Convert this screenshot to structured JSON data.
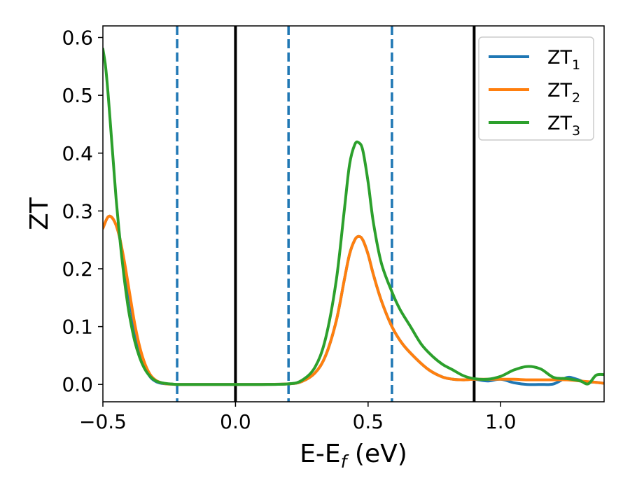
{
  "chart_data": {
    "type": "line",
    "xlabel": "E-E",
    "xlabel_subscript": "f",
    "xlabel_suffix": " (eV)",
    "ylabel": "ZT",
    "xlim": [
      -0.5,
      1.39
    ],
    "ylim": [
      -0.03,
      0.62
    ],
    "xticks": [
      -0.5,
      0.0,
      0.5,
      1.0
    ],
    "xtick_labels": [
      "−0.5",
      "0.0",
      "0.5",
      "1.0"
    ],
    "yticks": [
      0.0,
      0.1,
      0.2,
      0.3,
      0.4,
      0.5,
      0.6
    ],
    "ytick_labels": [
      "0.0",
      "0.1",
      "0.2",
      "0.3",
      "0.4",
      "0.5",
      "0.6"
    ],
    "grid": false,
    "legend_position": "top-right",
    "vertical_lines": [
      {
        "x": -0.22,
        "style": "dashed",
        "color": "#1f77b4"
      },
      {
        "x": 0.0,
        "style": "solid",
        "color": "#000000"
      },
      {
        "x": 0.2,
        "style": "dashed",
        "color": "#1f77b4"
      },
      {
        "x": 0.59,
        "style": "dashed",
        "color": "#1f77b4"
      },
      {
        "x": 0.9,
        "style": "solid",
        "color": "#000000"
      }
    ],
    "series": [
      {
        "name": "ZT",
        "name_subscript": "1",
        "color": "#1f77b4",
        "x": [
          -0.5,
          -0.48,
          -0.46,
          -0.44,
          -0.42,
          -0.4,
          -0.38,
          -0.36,
          -0.34,
          -0.32,
          -0.3,
          -0.28,
          -0.26,
          -0.24,
          -0.22,
          -0.2,
          -0.1,
          0.0,
          0.1,
          0.2,
          0.25,
          0.3,
          0.34,
          0.38,
          0.41,
          0.43,
          0.45,
          0.465,
          0.48,
          0.5,
          0.52,
          0.55,
          0.59,
          0.63,
          0.68,
          0.73,
          0.78,
          0.82,
          0.86,
          0.9,
          0.95,
          1.0,
          1.05,
          1.1,
          1.15,
          1.2,
          1.25,
          1.28,
          1.32,
          1.35,
          1.39
        ],
        "y": [
          0.27,
          0.29,
          0.285,
          0.26,
          0.21,
          0.15,
          0.095,
          0.055,
          0.028,
          0.012,
          0.005,
          0.002,
          0.001,
          0.0005,
          0.0,
          0.0,
          0.0,
          0.0,
          0.0,
          0.001,
          0.005,
          0.02,
          0.05,
          0.11,
          0.18,
          0.225,
          0.25,
          0.256,
          0.25,
          0.225,
          0.19,
          0.145,
          0.1,
          0.07,
          0.045,
          0.025,
          0.013,
          0.009,
          0.008,
          0.009,
          0.006,
          0.009,
          0.003,
          0.0,
          0.0,
          0.001,
          0.012,
          0.01,
          0.004,
          0.004,
          0.002
        ]
      },
      {
        "name": "ZT",
        "name_subscript": "2",
        "color": "#ff7f0e",
        "x": [
          -0.5,
          -0.48,
          -0.46,
          -0.44,
          -0.42,
          -0.4,
          -0.38,
          -0.36,
          -0.34,
          -0.32,
          -0.3,
          -0.28,
          -0.26,
          -0.24,
          -0.22,
          -0.2,
          -0.1,
          0.0,
          0.1,
          0.2,
          0.25,
          0.3,
          0.34,
          0.38,
          0.41,
          0.43,
          0.45,
          0.465,
          0.48,
          0.5,
          0.52,
          0.55,
          0.59,
          0.63,
          0.68,
          0.73,
          0.78,
          0.82,
          0.86,
          0.9,
          0.95,
          1.0,
          1.05,
          1.1,
          1.15,
          1.2,
          1.25,
          1.3,
          1.35,
          1.39
        ],
        "y": [
          0.27,
          0.29,
          0.285,
          0.26,
          0.215,
          0.16,
          0.105,
          0.063,
          0.034,
          0.016,
          0.007,
          0.003,
          0.001,
          0.0005,
          0.0,
          0.0,
          0.0,
          0.0,
          0.0,
          0.001,
          0.005,
          0.02,
          0.05,
          0.11,
          0.18,
          0.225,
          0.25,
          0.256,
          0.25,
          0.225,
          0.19,
          0.145,
          0.1,
          0.07,
          0.045,
          0.025,
          0.013,
          0.009,
          0.008,
          0.009,
          0.009,
          0.009,
          0.009,
          0.008,
          0.008,
          0.008,
          0.008,
          0.006,
          0.004,
          0.002
        ]
      },
      {
        "name": "ZT",
        "name_subscript": "3",
        "color": "#2ca02c",
        "x": [
          -0.5,
          -0.49,
          -0.48,
          -0.47,
          -0.46,
          -0.45,
          -0.44,
          -0.43,
          -0.42,
          -0.41,
          -0.4,
          -0.38,
          -0.36,
          -0.34,
          -0.32,
          -0.3,
          -0.28,
          -0.26,
          -0.24,
          -0.22,
          -0.2,
          -0.1,
          0.0,
          0.1,
          0.2,
          0.25,
          0.3,
          0.34,
          0.38,
          0.41,
          0.43,
          0.45,
          0.465,
          0.48,
          0.5,
          0.52,
          0.55,
          0.59,
          0.62,
          0.66,
          0.7,
          0.74,
          0.78,
          0.82,
          0.86,
          0.9,
          0.95,
          1.0,
          1.05,
          1.1,
          1.15,
          1.2,
          1.25,
          1.3,
          1.33,
          1.36,
          1.39
        ],
        "y": [
          0.58,
          0.55,
          0.5,
          0.44,
          0.38,
          0.32,
          0.27,
          0.225,
          0.185,
          0.15,
          0.12,
          0.075,
          0.045,
          0.025,
          0.013,
          0.006,
          0.003,
          0.0015,
          0.0007,
          0.0,
          0.0,
          0.0,
          0.0,
          0.0,
          0.001,
          0.007,
          0.03,
          0.08,
          0.18,
          0.3,
          0.38,
          0.415,
          0.418,
          0.405,
          0.35,
          0.28,
          0.21,
          0.16,
          0.13,
          0.1,
          0.07,
          0.05,
          0.035,
          0.025,
          0.015,
          0.01,
          0.009,
          0.014,
          0.025,
          0.031,
          0.027,
          0.012,
          0.01,
          0.006,
          0.001,
          0.016,
          0.017
        ]
      }
    ]
  }
}
